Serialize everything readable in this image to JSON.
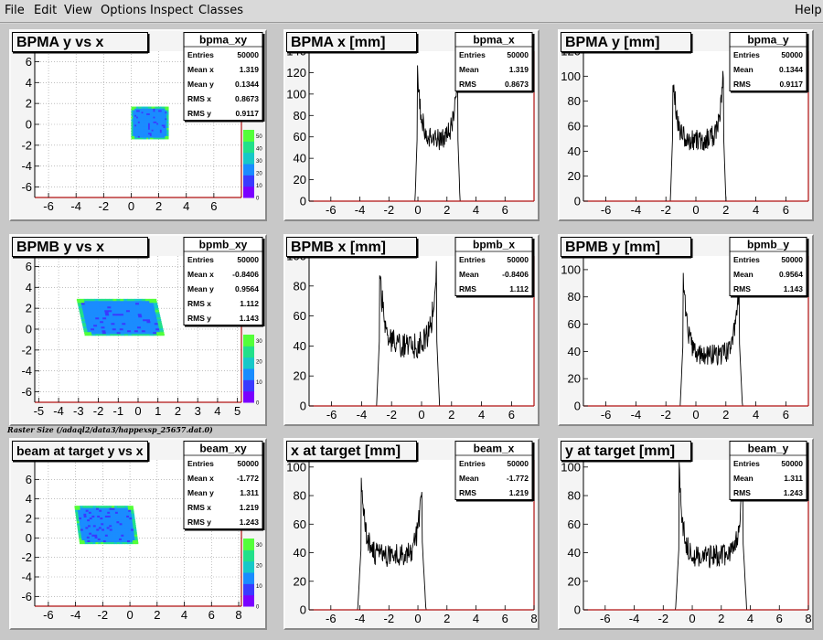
{
  "menu": {
    "file": "File",
    "edit": "Edit",
    "view": "View",
    "options": "Options",
    "inspect": "Inspect",
    "classes": "Classes",
    "help": "Help"
  },
  "caption": "Raster Size (/adaql2/data3/happexsp_25657.dat.0)",
  "colors": {
    "pad_background": "#f4f4f4",
    "frame_axis": "#b01010",
    "histogram_line": "#000000",
    "palette": [
      "#7a00ff",
      "#3a3aff",
      "#1a8cff",
      "#17c8c8",
      "#22e08a",
      "#54ff3a"
    ]
  },
  "chart_data": [
    {
      "type": "heatmap",
      "name": "bpma_xy",
      "title": "BPMA y vs x",
      "xlim": [
        -7,
        8
      ],
      "ylim": [
        -7,
        7
      ],
      "xticks": [
        -6,
        -4,
        -2,
        0,
        2,
        4,
        6
      ],
      "yticks": [
        -6,
        -4,
        -2,
        0,
        2,
        4,
        6
      ],
      "grid": true,
      "region": {
        "x": [
          0.0,
          2.7
        ],
        "y": [
          -1.4,
          1.7
        ],
        "shear": 0.0
      },
      "palette_ticks": [
        0,
        10,
        20,
        30,
        40,
        50
      ],
      "stats": [
        [
          "Entries",
          "50000"
        ],
        [
          "Mean x",
          "1.319"
        ],
        [
          "Mean y",
          "0.1344"
        ],
        [
          "RMS x",
          "0.8673"
        ],
        [
          "RMS y",
          "0.9117"
        ]
      ]
    },
    {
      "type": "line",
      "name": "bpma_x",
      "title": "BPMA x [mm]",
      "xlim": [
        -7.5,
        8
      ],
      "ylim": [
        0,
        140
      ],
      "xticks": [
        -6,
        -4,
        -2,
        0,
        2,
        4,
        6
      ],
      "yticks": [
        0,
        20,
        40,
        60,
        80,
        100,
        120,
        140
      ],
      "profile": {
        "lo": -0.05,
        "hi": 2.75,
        "peak": 122,
        "floor": 57,
        "edge": 0.15,
        "noise": 10,
        "seed": 3
      },
      "stats": [
        [
          "Entries",
          "50000"
        ],
        [
          "Mean",
          "1.319"
        ],
        [
          "RMS",
          "0.8673"
        ]
      ]
    },
    {
      "type": "line",
      "name": "bpma_y",
      "title": "BPMA y [mm]",
      "xlim": [
        -7.5,
        7.5
      ],
      "ylim": [
        0,
        120
      ],
      "xticks": [
        -6,
        -4,
        -2,
        0,
        2,
        4,
        6
      ],
      "yticks": [
        0,
        20,
        40,
        60,
        80,
        100,
        120
      ],
      "profile": {
        "lo": -1.55,
        "hi": 1.85,
        "peak": 105,
        "floor": 48,
        "edge": 0.15,
        "noise": 9,
        "seed": 7
      },
      "stats": [
        [
          "Entries",
          "50000"
        ],
        [
          "Mean",
          "0.1344"
        ],
        [
          "RMS",
          "0.9117"
        ]
      ]
    },
    {
      "type": "heatmap",
      "name": "bpmb_xy",
      "title": "BPMB y vs x",
      "xlim": [
        -5.2,
        5.2
      ],
      "ylim": [
        -7,
        7
      ],
      "xticks": [
        -5,
        -4,
        -3,
        -2,
        -1,
        0,
        1,
        2,
        3,
        4,
        5
      ],
      "yticks": [
        -6,
        -4,
        -2,
        0,
        2,
        4,
        6
      ],
      "grid": true,
      "region": {
        "x": [
          -2.9,
          1.1
        ],
        "y": [
          -0.6,
          2.9
        ],
        "shear": -0.12
      },
      "palette_ticks": [
        0,
        10,
        20,
        30
      ],
      "stats": [
        [
          "Entries",
          "50000"
        ],
        [
          "Mean x",
          "-0.8406"
        ],
        [
          "Mean y",
          "0.9564"
        ],
        [
          "RMS x",
          "1.112"
        ],
        [
          "RMS y",
          "1.143"
        ]
      ]
    },
    {
      "type": "line",
      "name": "bpmb_x",
      "title": "BPMB x [mm]",
      "xlim": [
        -7.5,
        7.5
      ],
      "ylim": [
        0,
        100
      ],
      "xticks": [
        -6,
        -4,
        -2,
        0,
        2,
        4,
        6
      ],
      "yticks": [
        0,
        20,
        40,
        60,
        80,
        100
      ],
      "profile": {
        "lo": -2.8,
        "hi": 1.0,
        "peak": 96,
        "floor": 40,
        "edge": 0.2,
        "noise": 9,
        "seed": 11
      },
      "stats": [
        [
          "Entries",
          "50000"
        ],
        [
          "Mean",
          "-0.8406"
        ],
        [
          "RMS",
          "1.112"
        ]
      ]
    },
    {
      "type": "line",
      "name": "bpmb_y",
      "title": "BPMB y [mm]",
      "xlim": [
        -7.5,
        7.5
      ],
      "ylim": [
        0,
        110
      ],
      "xticks": [
        -6,
        -4,
        -2,
        0,
        2,
        4,
        6
      ],
      "yticks": [
        0,
        20,
        40,
        60,
        80,
        100
      ],
      "profile": {
        "lo": -0.85,
        "hi": 2.9,
        "peak": 96,
        "floor": 37,
        "edge": 0.2,
        "noise": 8,
        "seed": 17
      },
      "stats": [
        [
          "Entries",
          "50000"
        ],
        [
          "Mean",
          "0.9564"
        ],
        [
          "RMS",
          "1.143"
        ]
      ]
    },
    {
      "type": "heatmap",
      "name": "beam_xy",
      "title": "beam at target y vs x",
      "xlim": [
        -7,
        8.2
      ],
      "ylim": [
        -7,
        8
      ],
      "xticks": [
        -6,
        -4,
        -2,
        0,
        2,
        4,
        6,
        8
      ],
      "yticks": [
        -6,
        -4,
        -2,
        0,
        2,
        4,
        6
      ],
      "grid": true,
      "region": {
        "x": [
          -3.9,
          0.4
        ],
        "y": [
          -0.6,
          3.3
        ],
        "shear": -0.1
      },
      "palette_ticks": [
        0,
        10,
        20,
        30
      ],
      "stats": [
        [
          "Entries",
          "50000"
        ],
        [
          "Mean x",
          "-1.772"
        ],
        [
          "Mean y",
          "1.311"
        ],
        [
          "RMS x",
          "1.219"
        ],
        [
          "RMS y",
          "1.243"
        ]
      ]
    },
    {
      "type": "line",
      "name": "beam_x",
      "title": "x at target [mm]",
      "xlim": [
        -7.5,
        8
      ],
      "ylim": [
        0,
        105
      ],
      "xticks": [
        -6,
        -4,
        -2,
        0,
        2,
        4,
        6,
        8
      ],
      "yticks": [
        0,
        20,
        40,
        60,
        80,
        100
      ],
      "profile": {
        "lo": -3.9,
        "hi": 0.3,
        "peak": 95,
        "floor": 38,
        "edge": 0.25,
        "noise": 8,
        "seed": 23
      },
      "stats": [
        [
          "Entries",
          "50000"
        ],
        [
          "Mean",
          "-1.772"
        ],
        [
          "RMS",
          "1.219"
        ]
      ]
    },
    {
      "type": "line",
      "name": "beam_y",
      "title": "y at target [mm]",
      "xlim": [
        -7.5,
        8
      ],
      "ylim": [
        0,
        105
      ],
      "xticks": [
        -6,
        -4,
        -2,
        0,
        2,
        4,
        6,
        8
      ],
      "yticks": [
        0,
        20,
        40,
        60,
        80,
        100
      ],
      "profile": {
        "lo": -0.9,
        "hi": 3.5,
        "peak": 96,
        "floor": 37,
        "edge": 0.25,
        "noise": 8,
        "seed": 29
      },
      "stats": [
        [
          "Entries",
          "50000"
        ],
        [
          "Mean",
          "1.311"
        ],
        [
          "RMS",
          "1.243"
        ]
      ]
    }
  ]
}
